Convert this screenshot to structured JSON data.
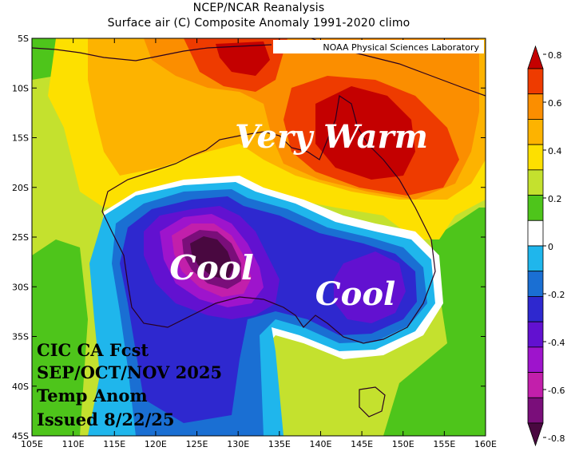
{
  "header": {
    "line1": "NCEP/NCAR Reanalysis",
    "line2": "Surface air (C) Composite Anomaly 1991-2020 climo"
  },
  "credit": "NOAA Physical Sciences Laboratory",
  "annotations": {
    "very_warm": "Very Warm",
    "cool_west": "Cool",
    "cool_east": "Cool"
  },
  "forecast_info": {
    "line1": "CIC CA Fcst",
    "line2": "SEP/OCT/NOV 2025",
    "line3": "Temp Anom",
    "line4": "Issued 8/22/25"
  },
  "axes": {
    "lon_ticks": [
      "105E",
      "110E",
      "115E",
      "120E",
      "125E",
      "130E",
      "135E",
      "140E",
      "145E",
      "150E",
      "155E",
      "160E"
    ],
    "lat_ticks": [
      "5S",
      "10S",
      "15S",
      "20S",
      "25S",
      "30S",
      "35S",
      "40S",
      "45S"
    ],
    "lon_range": [
      105,
      160
    ],
    "lat_range": [
      -5,
      -45
    ]
  },
  "colorbar": {
    "tick_labels": [
      "0.8",
      "0.6",
      "0.4",
      "0.2",
      "0",
      "-0.2",
      "-0.4",
      "-0.6",
      "-0.8"
    ],
    "colors_top_to_bottom": [
      "#c40000",
      "#ee3b00",
      "#fb8e00",
      "#fdb300",
      "#fde000",
      "#c4e12e",
      "#4ec51b",
      "#ffffff",
      "#1fb6ec",
      "#1a6fd3",
      "#2e28cf",
      "#6211d0",
      "#9e14cc",
      "#c21fab",
      "#7a0e7a",
      "#490840"
    ]
  },
  "colors": {
    "dark_red": "#c40000",
    "red": "#ee3b00",
    "orange": "#fb8e00",
    "gold": "#fdb300",
    "yellow": "#fde000",
    "yellow_green": "#c4e12e",
    "green": "#4ec51b",
    "neutral": "#ffffff",
    "light_blue": "#1fb6ec",
    "blue": "#1a6fd3",
    "indigo": "#2e28cf",
    "violet": "#6211d0",
    "purple": "#9e14cc",
    "magenta": "#c21fab",
    "dark_purple": "#7a0e7a",
    "darkest": "#490840"
  }
}
